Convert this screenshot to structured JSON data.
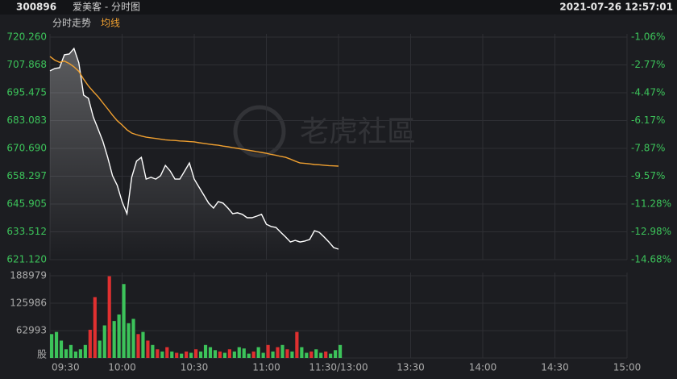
{
  "header": {
    "code": "300896",
    "name": "爱美客 - 分时图",
    "datetime": "2021-07-26 12:57:01"
  },
  "watermark": "老虎社區",
  "chart_data": [
    {
      "type": "line",
      "legend": "top-left",
      "x": [
        0,
        2,
        4,
        6,
        8,
        10,
        12,
        14,
        16,
        18,
        20,
        22,
        24,
        26,
        28,
        30,
        32,
        34,
        36,
        38,
        40,
        42,
        44,
        46,
        48,
        50,
        52,
        54,
        56,
        58,
        60,
        62,
        64,
        66,
        68,
        70,
        72,
        74,
        76,
        78,
        80,
        82,
        84,
        86,
        88,
        90,
        92,
        94,
        96,
        98,
        100,
        102,
        104,
        106,
        108,
        110,
        112,
        114,
        116,
        118,
        120
      ],
      "xlim": [
        0,
        240
      ],
      "ylim": [
        621.12,
        720.26
      ],
      "yticks": [
        {
          "value": 720.26,
          "label": "720.260"
        },
        {
          "value": 707.868,
          "label": "707.868"
        },
        {
          "value": 695.475,
          "label": "695.475"
        },
        {
          "value": 683.083,
          "label": "683.083"
        },
        {
          "value": 670.69,
          "label": "670.690"
        },
        {
          "value": 658.297,
          "label": "658.297"
        },
        {
          "value": 645.905,
          "label": "645.905"
        },
        {
          "value": 633.512,
          "label": "633.512"
        },
        {
          "value": 621.12,
          "label": "621.120"
        }
      ],
      "y2lim": [
        -14.68,
        -1.06
      ],
      "y2ticks": [
        {
          "value": -1.06,
          "label": "-1.06%"
        },
        {
          "value": -2.77,
          "label": "-2.77%"
        },
        {
          "value": -4.47,
          "label": "-4.47%"
        },
        {
          "value": -6.17,
          "label": "-6.17%"
        },
        {
          "value": -7.87,
          "label": "-7.87%"
        },
        {
          "value": -9.57,
          "label": "-9.57%"
        },
        {
          "value": -11.28,
          "label": "-11.28%"
        },
        {
          "value": -12.98,
          "label": "-12.98%"
        },
        {
          "value": -14.68,
          "label": "-14.68%"
        }
      ],
      "grid": true,
      "series": [
        {
          "name": "分时走势",
          "color": "#ffffff",
          "values": [
            705.2,
            706.3,
            706.6,
            712.4,
            712.7,
            715.2,
            708.8,
            694.4,
            693.0,
            684.7,
            679.3,
            673.9,
            666.7,
            658.5,
            654.2,
            646.9,
            641.6,
            657.8,
            665.0,
            666.7,
            657.0,
            657.8,
            657.0,
            658.5,
            663.1,
            660.6,
            657.0,
            657.0,
            660.6,
            664.2,
            657.0,
            653.4,
            649.9,
            646.3,
            644.1,
            647.0,
            646.3,
            644.1,
            641.6,
            642.0,
            641.3,
            639.8,
            639.8,
            640.5,
            641.3,
            636.9,
            635.9,
            635.5,
            633.3,
            631.2,
            629.0,
            629.7,
            629.0,
            629.4,
            630.1,
            634.0,
            633.3,
            631.2,
            629.0,
            626.5,
            625.8
          ]
        },
        {
          "name": "均线",
          "color": "#f0a030",
          "values": [
            711.6,
            710.0,
            709.0,
            709.6,
            708.5,
            707.0,
            705.0,
            701.5,
            698.5,
            696.0,
            693.7,
            691.0,
            688.3,
            685.5,
            683.0,
            681.1,
            679.0,
            677.5,
            676.8,
            676.2,
            675.7,
            675.4,
            675.1,
            674.8,
            674.5,
            674.3,
            674.2,
            674.0,
            673.9,
            673.7,
            673.6,
            673.2,
            672.9,
            672.6,
            672.3,
            672.1,
            671.7,
            671.4,
            671.0,
            670.7,
            670.3,
            670.0,
            669.6,
            669.2,
            668.9,
            668.5,
            668.0,
            667.6,
            667.1,
            666.7,
            665.9,
            665.0,
            664.2,
            664.0,
            663.8,
            663.5,
            663.4,
            663.2,
            663.0,
            662.9,
            662.8
          ]
        }
      ]
    },
    {
      "type": "bar",
      "x": [
        0,
        2,
        4,
        6,
        8,
        10,
        12,
        14,
        16,
        18,
        20,
        22,
        24,
        26,
        28,
        30,
        32,
        34,
        36,
        38,
        40,
        42,
        44,
        46,
        48,
        50,
        52,
        54,
        56,
        58,
        60,
        62,
        64,
        66,
        68,
        70,
        72,
        74,
        76,
        78,
        80,
        82,
        84,
        86,
        88,
        90,
        92,
        94,
        96,
        98,
        100,
        102,
        104,
        106,
        108,
        110,
        112,
        114,
        116,
        118,
        120
      ],
      "xlim": [
        0,
        240
      ],
      "xticks": [
        {
          "value": 0,
          "label": "09:30"
        },
        {
          "value": 30,
          "label": "10:00"
        },
        {
          "value": 60,
          "label": "10:30"
        },
        {
          "value": 90,
          "label": "11:00"
        },
        {
          "value": 120,
          "label": "11:30/13:00"
        },
        {
          "value": 150,
          "label": "13:30"
        },
        {
          "value": 180,
          "label": "14:00"
        },
        {
          "value": 210,
          "label": "14:30"
        },
        {
          "value": 240,
          "label": "15:00"
        }
      ],
      "ylim": [
        0,
        188979
      ],
      "yticks": [
        {
          "value": 0,
          "label": "股"
        },
        62993,
        125986,
        188979
      ],
      "grid": true,
      "values": [
        55000,
        60000,
        40000,
        20000,
        30000,
        15000,
        20000,
        30000,
        65000,
        140000,
        40000,
        75000,
        188000,
        85000,
        100000,
        170000,
        80000,
        90000,
        55000,
        60000,
        40000,
        30000,
        20000,
        15000,
        25000,
        15000,
        12000,
        10000,
        15000,
        12000,
        20000,
        15000,
        30000,
        25000,
        18000,
        15000,
        12000,
        20000,
        15000,
        25000,
        22000,
        10000,
        15000,
        25000,
        12000,
        30000,
        15000,
        25000,
        30000,
        20000,
        15000,
        60000,
        25000,
        12000,
        15000,
        20000,
        12000,
        15000,
        10000,
        18000,
        30000
      ],
      "colors": [
        "#3cc35a",
        "#3cc35a",
        "#3cc35a",
        "#3cc35a",
        "#3cc35a",
        "#3cc35a",
        "#3cc35a",
        "#3cc35a",
        "#e03030",
        "#e03030",
        "#3cc35a",
        "#3cc35a",
        "#e03030",
        "#3cc35a",
        "#3cc35a",
        "#3cc35a",
        "#3cc35a",
        "#3cc35a",
        "#e03030",
        "#3cc35a",
        "#e03030",
        "#3cc35a",
        "#e03030",
        "#3cc35a",
        "#e03030",
        "#3cc35a",
        "#e03030",
        "#3cc35a",
        "#e03030",
        "#3cc35a",
        "#e03030",
        "#3cc35a",
        "#3cc35a",
        "#3cc35a",
        "#3cc35a",
        "#e03030",
        "#3cc35a",
        "#e03030",
        "#3cc35a",
        "#3cc35a",
        "#3cc35a",
        "#3cc35a",
        "#e03030",
        "#3cc35a",
        "#3cc35a",
        "#e03030",
        "#3cc35a",
        "#e03030",
        "#3cc35a",
        "#e03030",
        "#3cc35a",
        "#e03030",
        "#3cc35a",
        "#3cc35a",
        "#e03030",
        "#3cc35a",
        "#3cc35a",
        "#e03030",
        "#3cc35a",
        "#3cc35a",
        "#3cc35a"
      ]
    }
  ]
}
